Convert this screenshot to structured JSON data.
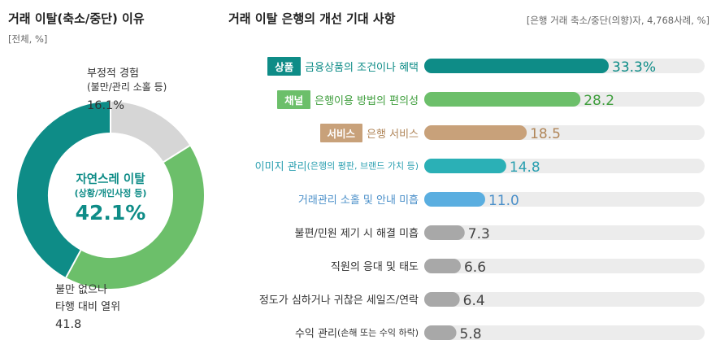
{
  "left_chart": {
    "title": "거래 이탈(축소/중단) 이유",
    "subtitle": "[전체, %]",
    "center_line1": "자연스레 이탈",
    "center_line2": "(상황/개인사정 등)",
    "center_value": "42.1%",
    "seg_neg_line1": "부정적 경험",
    "seg_neg_line2": "(불만/관리 소홀 등)",
    "seg_neg_value": "16.1%",
    "seg_rel_line1": "불만 없으나",
    "seg_rel_line2": "타행 대비 열위",
    "seg_rel_value": "41.8"
  },
  "right_chart": {
    "title": "거래 이탈 은행의 개선 기대 사항",
    "subtitle": "[은행 거래 축소/중단(의향)자, 4,768사례, %]"
  },
  "colors": {
    "teal": "#0e8c87",
    "green": "#6cbf6a",
    "tan": "#c8a17a",
    "cyan": "#2bb0b6",
    "blue": "#5aaee0",
    "gray": "#a8a8a8",
    "track": "#ececec",
    "donut_gray": "#d6d6d6"
  },
  "chart_data": [
    {
      "type": "pie",
      "donut": true,
      "title": "거래 이탈(축소/중단) 이유",
      "unit": "%",
      "categories": [
        "자연스레 이탈 (상황/개인사정 등)",
        "부정적 경험 (불만/관리 소홀 등)",
        "불만 없으나 타행 대비 열위"
      ],
      "values": [
        42.1,
        16.1,
        41.8
      ],
      "colors": [
        "#0e8c87",
        "#d6d6d6",
        "#6cbf6a"
      ]
    },
    {
      "type": "bar",
      "orientation": "horizontal",
      "title": "거래 이탈 은행의 개선 기대 사항",
      "unit": "%",
      "xlim": [
        0,
        100
      ],
      "bars": [
        {
          "tag": "상품",
          "label": "금융상품의 조건이나 혜택",
          "note": "",
          "value": 33.3,
          "value_label": "33.3%",
          "color": "#0e8c87",
          "label_color": "#0e8c87"
        },
        {
          "tag": "채널",
          "label": "은행이용 방법의 편의성",
          "note": "",
          "value": 28.2,
          "value_label": "28.2",
          "color": "#6cbf6a",
          "label_color": "#3f9e3d"
        },
        {
          "tag": "서비스",
          "label": "은행 서비스",
          "note": "",
          "value": 18.5,
          "value_label": "18.5",
          "color": "#c8a17a",
          "label_color": "#b08558"
        },
        {
          "tag": "",
          "label": "이미지 관리",
          "note": "(은행의 평판, 브랜드 가치 등)",
          "value": 14.8,
          "value_label": "14.8",
          "color": "#2bb0b6",
          "label_color": "#2a9fb0"
        },
        {
          "tag": "",
          "label": "거래관리 소홀 및 안내 미흡",
          "note": "",
          "value": 11.0,
          "value_label": "11.0",
          "color": "#5aaee0",
          "label_color": "#4a8fc9"
        },
        {
          "tag": "",
          "label": "불편/민원 제기 시 해결 미흡",
          "note": "",
          "value": 7.3,
          "value_label": "7.3",
          "color": "#a8a8a8",
          "label_color": "#333333"
        },
        {
          "tag": "",
          "label": "직원의 응대 및 태도",
          "note": "",
          "value": 6.6,
          "value_label": "6.6",
          "color": "#a8a8a8",
          "label_color": "#333333"
        },
        {
          "tag": "",
          "label": "정도가 심하거나 귀찮은 세일즈/연락",
          "note": "",
          "value": 6.4,
          "value_label": "6.4",
          "color": "#a8a8a8",
          "label_color": "#333333"
        },
        {
          "tag": "",
          "label": "수익 관리",
          "note": "(손해 또는 수익 하락)",
          "value": 5.8,
          "value_label": "5.8",
          "color": "#a8a8a8",
          "label_color": "#333333"
        }
      ]
    }
  ]
}
